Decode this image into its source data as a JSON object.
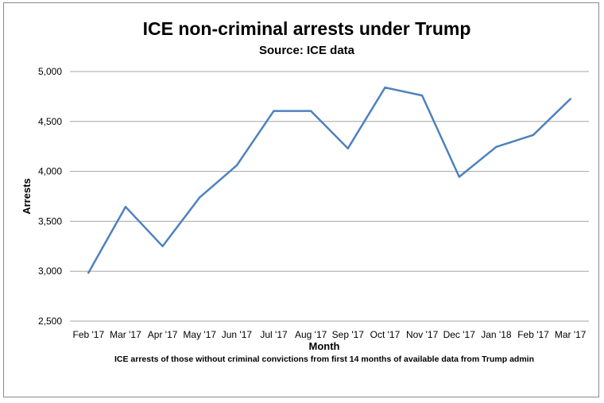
{
  "chart_data": {
    "type": "line",
    "title": "ICE non-criminal arrests under Trump",
    "subtitle": "Source: ICE data",
    "xlabel": "Month",
    "ylabel": "Arrests",
    "footnote": "ICE arrests of those without criminal convictions from first 14 months of available data from Trump admin",
    "categories": [
      "Feb '17",
      "Mar '17",
      "Apr '17",
      "May '17",
      "Jun '17",
      "Jul '17",
      "Aug '17",
      "Sep '17",
      "Oct '17",
      "Nov '17",
      "Dec '17",
      "Jan '18",
      "Feb '17",
      "Mar '17"
    ],
    "series": [
      {
        "values": [
          2985,
          3645,
          3250,
          3740,
          4060,
          4605,
          4605,
          4230,
          4840,
          4760,
          3945,
          4245,
          4365,
          4725
        ]
      }
    ],
    "ylim": [
      2500,
      5000
    ],
    "yticks": [
      "2,500",
      "3,000",
      "3,500",
      "4,000",
      "4,500",
      "5,000"
    ],
    "ytick_values": [
      2500,
      3000,
      3500,
      4000,
      4500,
      5000
    ],
    "grid": true,
    "legend": "none",
    "line_color": "#4f81bd",
    "grid_color": "#a6a6a6"
  }
}
